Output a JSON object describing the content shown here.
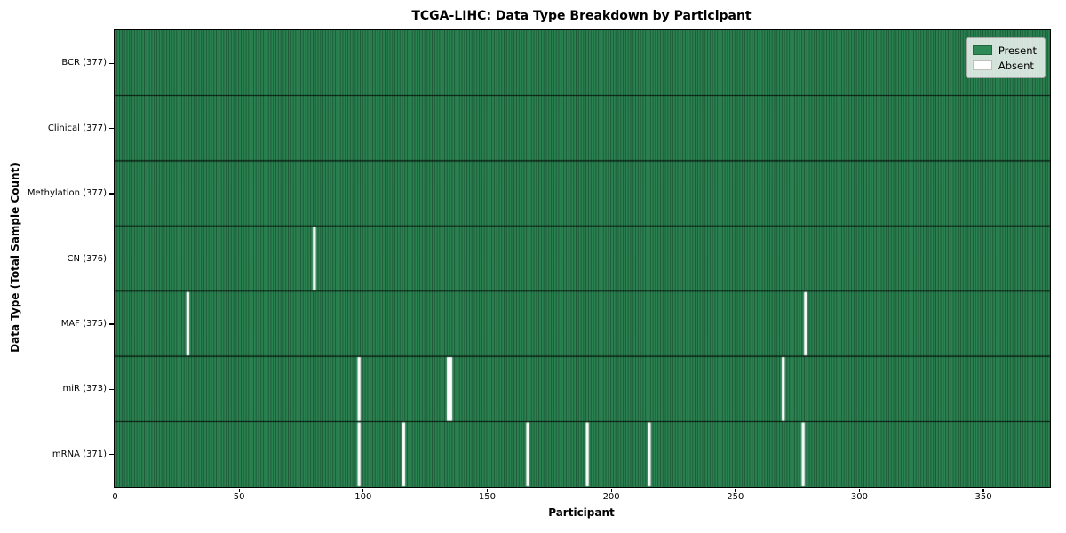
{
  "chart_data": {
    "type": "heatmap",
    "title": "TCGA-LIHC: Data Type Breakdown by Participant",
    "xlabel": "Participant",
    "ylabel": "Data Type (Total Sample Count)",
    "xlim": [
      0,
      377
    ],
    "n_participants": 377,
    "x_ticks": [
      0,
      50,
      100,
      150,
      200,
      250,
      300,
      350
    ],
    "grid": "cell-borders",
    "legend": {
      "position": "upper right",
      "entries": [
        {
          "label": "Present",
          "color": "#2e8b57"
        },
        {
          "label": "Absent",
          "color": "#ffffff"
        }
      ]
    },
    "rows": [
      {
        "label": "BCR (377)",
        "name": "BCR",
        "total": 377,
        "absent_participants": []
      },
      {
        "label": "Clinical (377)",
        "name": "Clinical",
        "total": 377,
        "absent_participants": []
      },
      {
        "label": "Methylation (377)",
        "name": "Methylation",
        "total": 377,
        "absent_participants": []
      },
      {
        "label": "CN (376)",
        "name": "CN",
        "total": 376,
        "absent_participants": [
          80
        ]
      },
      {
        "label": "MAF (375)",
        "name": "MAF",
        "total": 375,
        "absent_participants": [
          29,
          278
        ]
      },
      {
        "label": "miR (373)",
        "name": "miR",
        "total": 373,
        "absent_participants": [
          98,
          134,
          135,
          269
        ]
      },
      {
        "label": "mRNA (371)",
        "name": "mRNA",
        "total": 371,
        "absent_participants": [
          98,
          116,
          166,
          190,
          215,
          277
        ]
      }
    ],
    "colors": {
      "present": "#2e8b57",
      "absent": "#ffffff",
      "cell_border": "#000000",
      "row_border": "#000000",
      "plot_border": "#000000",
      "legend_border": "#a8a8a8"
    }
  }
}
